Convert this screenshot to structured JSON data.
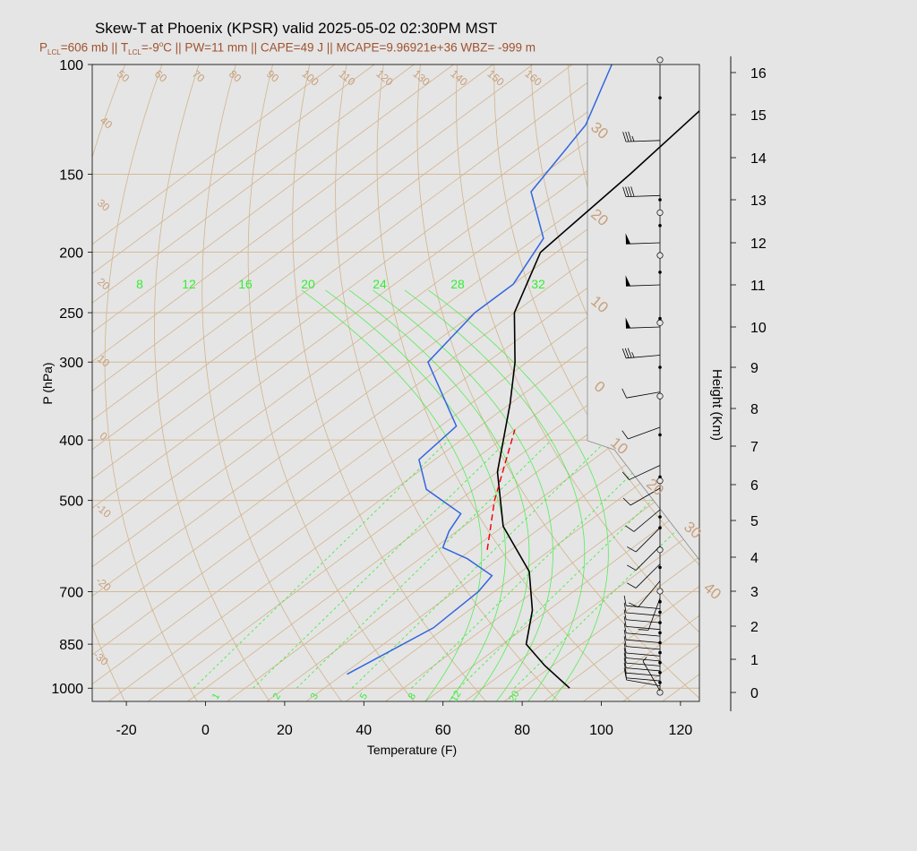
{
  "header": {
    "title": "Skew-T at Phoenix (KPSR) valid 2025-05-02 02:30PM MST",
    "sub": {
      "p_prefix": "P",
      "p_sub": "LCL",
      "p_val": "=606 mb || T",
      "t_sub": "LCL",
      "t_val": "=-9",
      "t_sup": "o",
      "rest": "C || PW=11 mm || CAPE=49 J || MCAPE=9.96921e+36 WBZ= -999 m"
    }
  },
  "chart_data": {
    "type": "skew-t",
    "xlabel": "Temperature (F)",
    "ylabel": "P (hPa)",
    "y2label": "Height (Km)",
    "xlim": [
      -28,
      124
    ],
    "plim": [
      1050,
      100
    ],
    "x_ticks": [
      "-20",
      "0",
      "20",
      "40",
      "60",
      "80",
      "100",
      "120"
    ],
    "p_ticks": [
      "100",
      "150",
      "200",
      "250",
      "300",
      "400",
      "500",
      "700",
      "850",
      "1000"
    ],
    "height_ticks": [
      "16",
      "15",
      "14",
      "13",
      "12",
      "11",
      "10",
      "9",
      "8",
      "7",
      "6",
      "5",
      "4",
      "3",
      "2",
      "1",
      "0"
    ],
    "isotherm_labels": [
      "-30",
      "-20",
      "-10",
      "0",
      "10",
      "20",
      "30",
      "40",
      "50",
      "60",
      "70",
      "80",
      "90",
      "100",
      "110",
      "120",
      "130",
      "140",
      "150",
      "160"
    ],
    "mixing_ratio_top_labels": [
      "8",
      "12",
      "16",
      "20",
      "24",
      "28",
      "32"
    ],
    "mixing_ratio_bottom_labels": [
      "1",
      "2",
      "3",
      "5",
      "8",
      "12",
      "20"
    ],
    "temperature_profile": [
      {
        "p": 1000,
        "t": 92
      },
      {
        "p": 920,
        "t": 78
      },
      {
        "p": 850,
        "t": 66
      },
      {
        "p": 750,
        "t": 56
      },
      {
        "p": 650,
        "t": 42
      },
      {
        "p": 550,
        "t": 20
      },
      {
        "p": 450,
        "t": 0
      },
      {
        "p": 350,
        "t": -20
      },
      {
        "p": 300,
        "t": -33
      },
      {
        "p": 250,
        "t": -50
      },
      {
        "p": 200,
        "t": -64
      },
      {
        "p": 150,
        "t": -68
      },
      {
        "p": 100,
        "t": -75
      }
    ],
    "dewpoint_profile": [
      {
        "p": 950,
        "t": 31
      },
      {
        "p": 800,
        "t": 37
      },
      {
        "p": 700,
        "t": 36
      },
      {
        "p": 660,
        "t": 34
      },
      {
        "p": 620,
        "t": 22
      },
      {
        "p": 595,
        "t": 12
      },
      {
        "p": 560,
        "t": 8
      },
      {
        "p": 525,
        "t": 5
      },
      {
        "p": 480,
        "t": -12
      },
      {
        "p": 430,
        "t": -24
      },
      {
        "p": 380,
        "t": -26
      },
      {
        "p": 300,
        "t": -55
      },
      {
        "p": 250,
        "t": -60
      },
      {
        "p": 225,
        "t": -60
      },
      {
        "p": 190,
        "t": -68
      },
      {
        "p": 160,
        "t": -87
      },
      {
        "p": 125,
        "t": -96
      },
      {
        "p": 100,
        "t": -110
      }
    ],
    "parcel_segment": [
      {
        "p": 600,
        "t": 24
      },
      {
        "p": 500,
        "t": 9
      },
      {
        "p": 385,
        "t": -10
      }
    ],
    "wind_barbs": [
      {
        "km": 0.05,
        "deg": 330,
        "kt": 5
      },
      {
        "km": 0.2,
        "deg": 280,
        "kt": 10
      },
      {
        "km": 0.35,
        "deg": 275,
        "kt": 10
      },
      {
        "km": 0.5,
        "deg": 275,
        "kt": 10
      },
      {
        "km": 0.65,
        "deg": 275,
        "kt": 10
      },
      {
        "km": 0.8,
        "deg": 275,
        "kt": 10
      },
      {
        "km": 0.95,
        "deg": 275,
        "kt": 10
      },
      {
        "km": 1.1,
        "deg": 275,
        "kt": 10
      },
      {
        "km": 1.3,
        "deg": 275,
        "kt": 10
      },
      {
        "km": 1.5,
        "deg": 275,
        "kt": 10
      },
      {
        "km": 1.7,
        "deg": 275,
        "kt": 10
      },
      {
        "km": 1.9,
        "deg": 275,
        "kt": 10
      },
      {
        "km": 2.1,
        "deg": 275,
        "kt": 10
      },
      {
        "km": 2.3,
        "deg": 275,
        "kt": 10
      },
      {
        "km": 2.5,
        "deg": 275,
        "kt": 10
      },
      {
        "km": 2.8,
        "deg": 200,
        "kt": 10
      },
      {
        "km": 3.3,
        "deg": 220,
        "kt": 10
      },
      {
        "km": 3.8,
        "deg": 225,
        "kt": 10
      },
      {
        "km": 4.3,
        "deg": 225,
        "kt": 10
      },
      {
        "km": 4.8,
        "deg": 225,
        "kt": 10
      },
      {
        "km": 5.3,
        "deg": 230,
        "kt": 10
      },
      {
        "km": 5.9,
        "deg": 240,
        "kt": 10
      },
      {
        "km": 6.5,
        "deg": 245,
        "kt": 10
      },
      {
        "km": 7.5,
        "deg": 250,
        "kt": 10
      },
      {
        "km": 8.4,
        "deg": 260,
        "kt": 10
      },
      {
        "km": 9.3,
        "deg": 265,
        "kt": 35
      },
      {
        "km": 10.0,
        "deg": 268,
        "kt": 50
      },
      {
        "km": 11.0,
        "deg": 268,
        "kt": 50
      },
      {
        "km": 12.0,
        "deg": 268,
        "kt": 50
      },
      {
        "km": 13.1,
        "deg": 268,
        "kt": 40
      },
      {
        "km": 14.4,
        "deg": 268,
        "kt": 35
      }
    ],
    "grid": true,
    "colors": {
      "isotherm": "#d2b48c",
      "isotherm_label": "#c8a07a",
      "mixing_ratio": "#33ee33",
      "temperature": "#000000",
      "dewpoint": "#3366dd",
      "parcel": "#ee0000",
      "subtitle": "#a0522d"
    }
  }
}
